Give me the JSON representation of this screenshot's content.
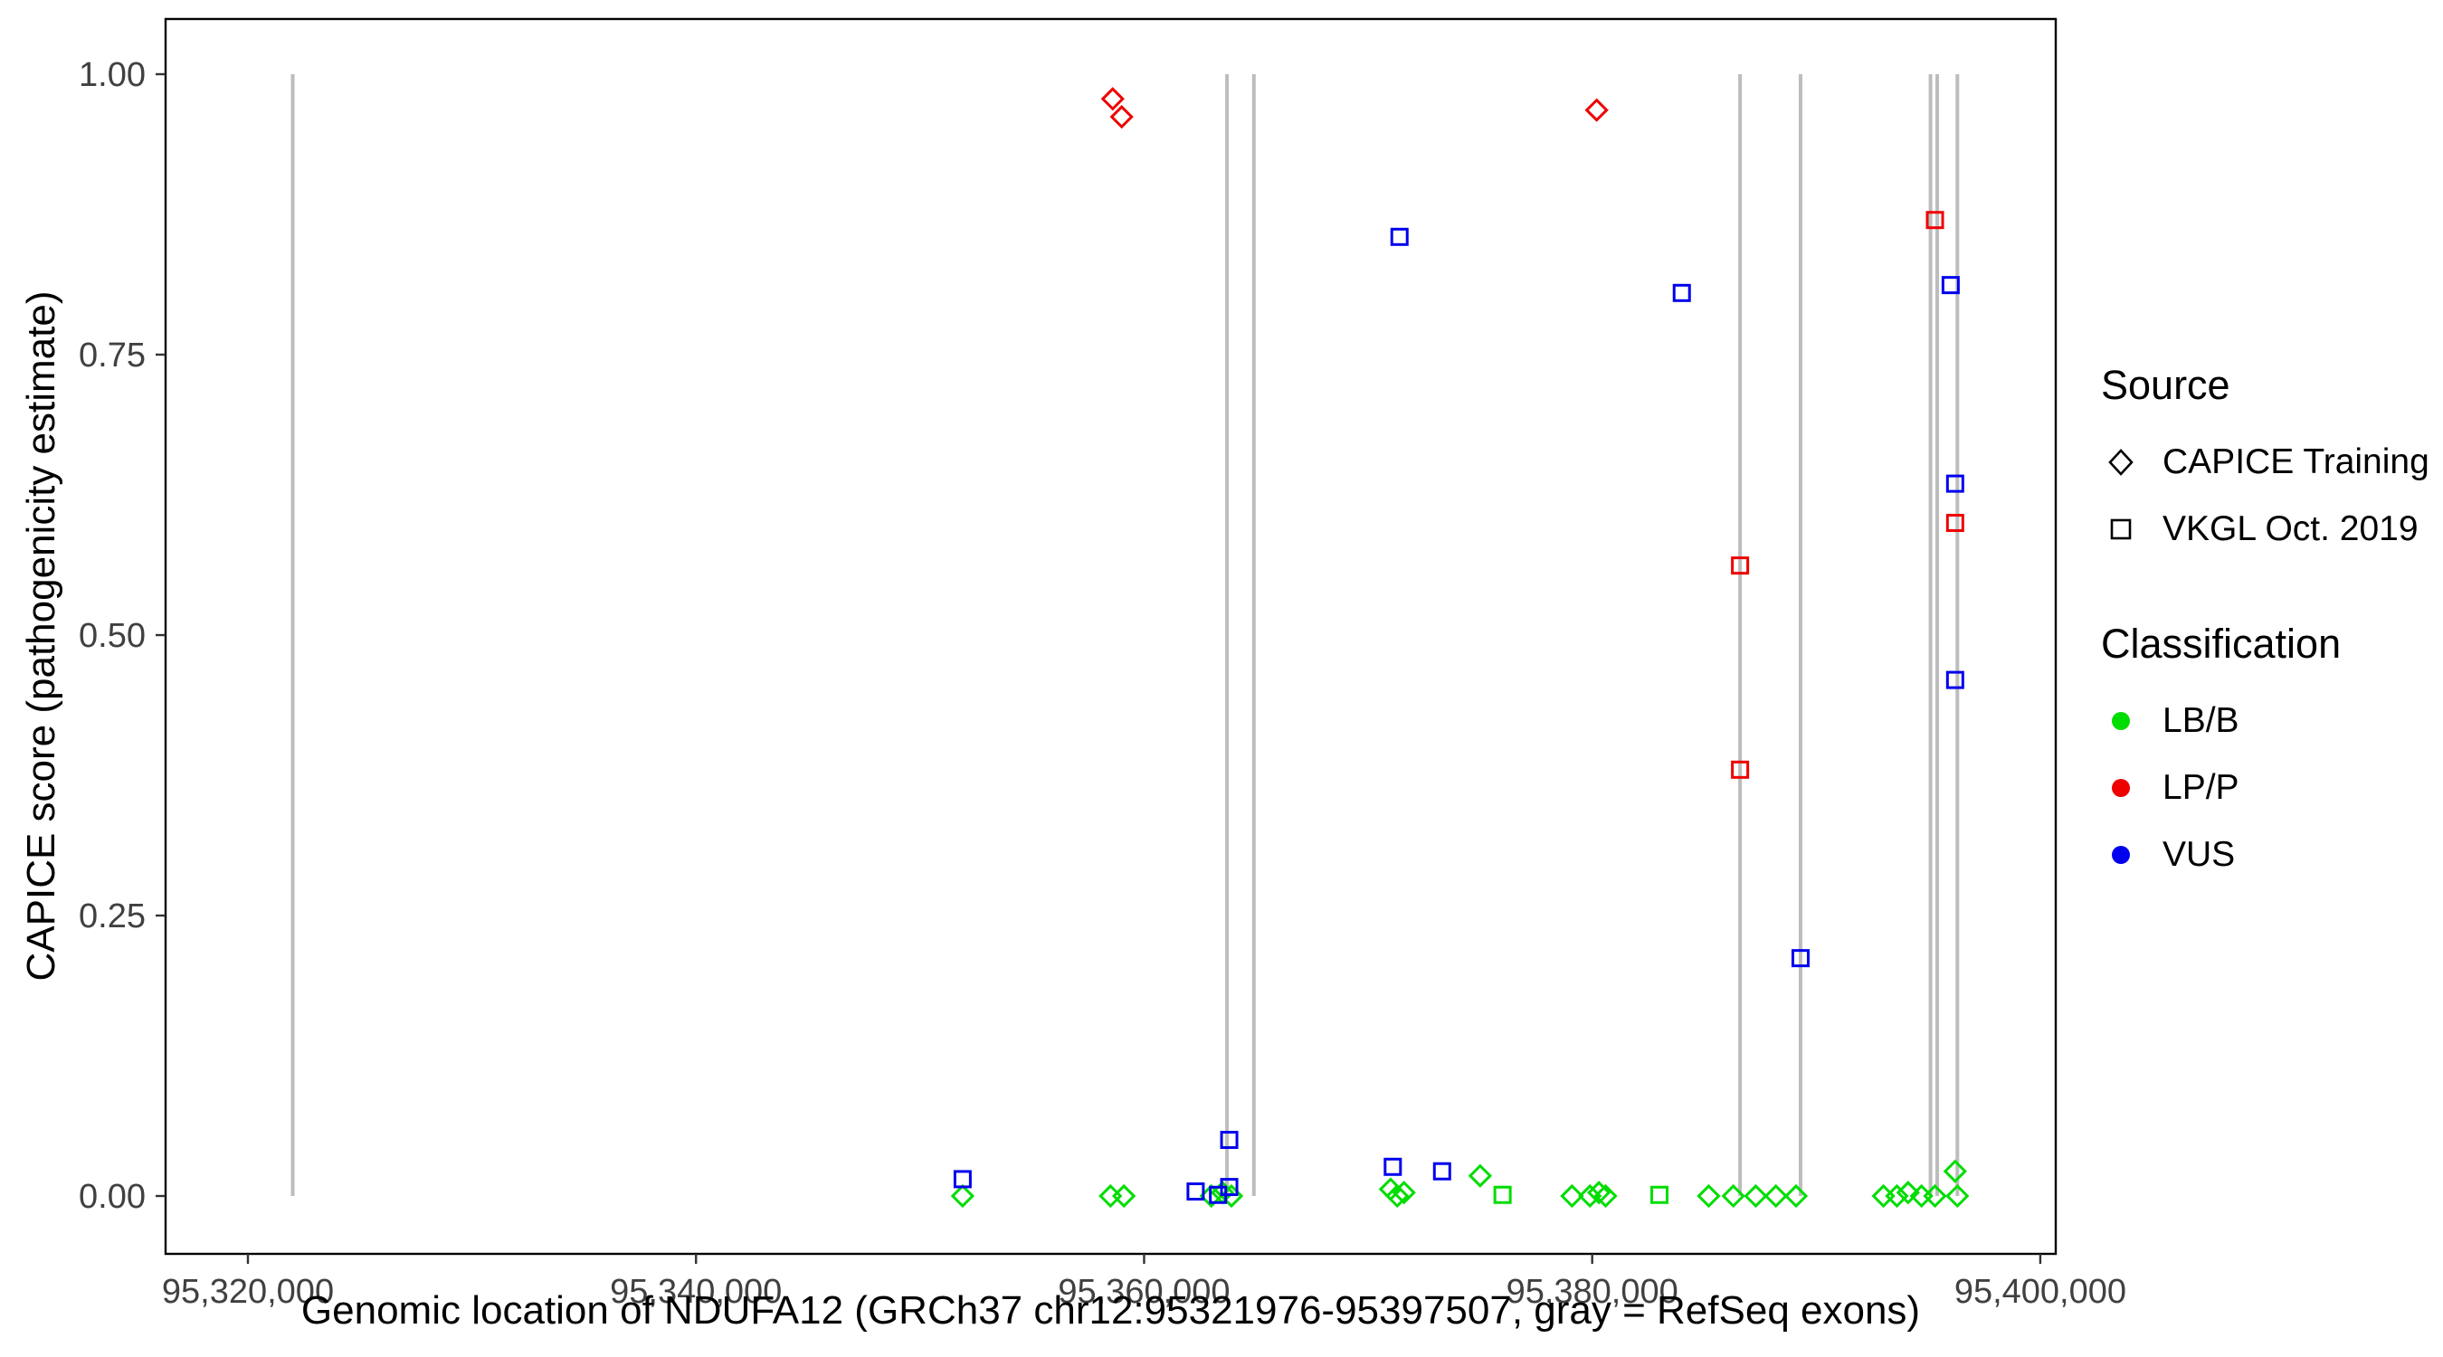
{
  "chart_data": {
    "type": "scatter",
    "title": "",
    "xlabel": "Genomic location of NDUFA12 (GRCh37 chr12:95321976-95397507, gray = RefSeq exons)",
    "ylabel": "CAPICE score (pathogenicity estimate)",
    "xlim": [
      95316325,
      95400690
    ],
    "ylim": [
      -0.0516,
      1.0492
    ],
    "grid": false,
    "x_ticks": [
      {
        "value": 95320000,
        "label": "95,320,000"
      },
      {
        "value": 95340000,
        "label": "95,340,000"
      },
      {
        "value": 95360000,
        "label": "95,360,000"
      },
      {
        "value": 95380000,
        "label": "95,380,000"
      },
      {
        "value": 95400000,
        "label": "95,400,000"
      }
    ],
    "y_ticks": [
      {
        "value": 0,
        "label": "0.00"
      },
      {
        "value": 0.25,
        "label": "0.25"
      },
      {
        "value": 0.5,
        "label": "0.50"
      },
      {
        "value": 0.75,
        "label": "0.75"
      },
      {
        "value": 1,
        "label": "1.00"
      }
    ],
    "exon_lines": {
      "color": "#BDBDBD",
      "y_range": [
        0,
        1
      ],
      "x": [
        95322000,
        95363700,
        95364900,
        95386600,
        95389300,
        95395100,
        95395400,
        95396300
      ]
    },
    "series": [
      {
        "name": "CAPICE Training - LB/B",
        "source": "CAPICE Training",
        "classification": "LB/B",
        "shape": "diamond",
        "color": "#00DD00",
        "points": [
          [
            95351900,
            0
          ],
          [
            95358500,
            0
          ],
          [
            95359100,
            0
          ],
          [
            95363000,
            0
          ],
          [
            95363500,
            0.003
          ],
          [
            95363900,
            0
          ],
          [
            95371000,
            0.006
          ],
          [
            95371300,
            0
          ],
          [
            95371600,
            0.003
          ],
          [
            95375000,
            0.018
          ],
          [
            95379100,
            0
          ],
          [
            95379900,
            0
          ],
          [
            95380300,
            0.003
          ],
          [
            95380600,
            0
          ],
          [
            95385200,
            0
          ],
          [
            95386300,
            0
          ],
          [
            95387300,
            0
          ],
          [
            95388200,
            0
          ],
          [
            95389100,
            0
          ],
          [
            95393000,
            0
          ],
          [
            95393600,
            0
          ],
          [
            95394100,
            0.003
          ],
          [
            95394700,
            0
          ],
          [
            95395300,
            0
          ],
          [
            95396200,
            0.022
          ],
          [
            95396300,
            0
          ]
        ]
      },
      {
        "name": "CAPICE Training - LP/P",
        "source": "CAPICE Training",
        "classification": "LP/P",
        "shape": "diamond",
        "color": "#EE0000",
        "points": [
          [
            95358600,
            0.978
          ],
          [
            95359000,
            0.962
          ],
          [
            95380200,
            0.968
          ]
        ]
      },
      {
        "name": "VKGL Oct. 2019 - LB/B",
        "source": "VKGL Oct. 2019",
        "classification": "LB/B",
        "shape": "square",
        "color": "#00DD00",
        "points": [
          [
            95376000,
            0.001
          ],
          [
            95383000,
            0.001
          ]
        ]
      },
      {
        "name": "VKGL Oct. 2019 - LP/P",
        "source": "VKGL Oct. 2019",
        "classification": "LP/P",
        "shape": "square",
        "color": "#EE0000",
        "points": [
          [
            95395300,
            0.87
          ],
          [
            95396200,
            0.6
          ],
          [
            95386600,
            0.562
          ],
          [
            95386600,
            0.38
          ]
        ]
      },
      {
        "name": "VKGL Oct. 2019 - VUS",
        "source": "VKGL Oct. 2019",
        "classification": "VUS",
        "shape": "square",
        "color": "#0000EE",
        "points": [
          [
            95371400,
            0.855
          ],
          [
            95384000,
            0.805
          ],
          [
            95396000,
            0.812
          ],
          [
            95396200,
            0.635
          ],
          [
            95396200,
            0.46
          ],
          [
            95389300,
            0.212
          ],
          [
            95363800,
            0.05
          ],
          [
            95371100,
            0.026
          ],
          [
            95373300,
            0.022
          ],
          [
            95351900,
            0.015
          ],
          [
            95362300,
            0.004
          ],
          [
            95363800,
            0.008
          ],
          [
            95363300,
            0.001
          ]
        ]
      }
    ],
    "legend": {
      "position": "right",
      "source": {
        "title": "Source",
        "items": [
          {
            "label": "CAPICE Training",
            "shape": "diamond"
          },
          {
            "label": "VKGL Oct. 2019",
            "shape": "square"
          }
        ]
      },
      "classification": {
        "title": "Classification",
        "items": [
          {
            "label": "LB/B",
            "color": "#00DD00"
          },
          {
            "label": "LP/P",
            "color": "#EE0000"
          },
          {
            "label": "VUS",
            "color": "#0000EE"
          }
        ]
      }
    }
  }
}
